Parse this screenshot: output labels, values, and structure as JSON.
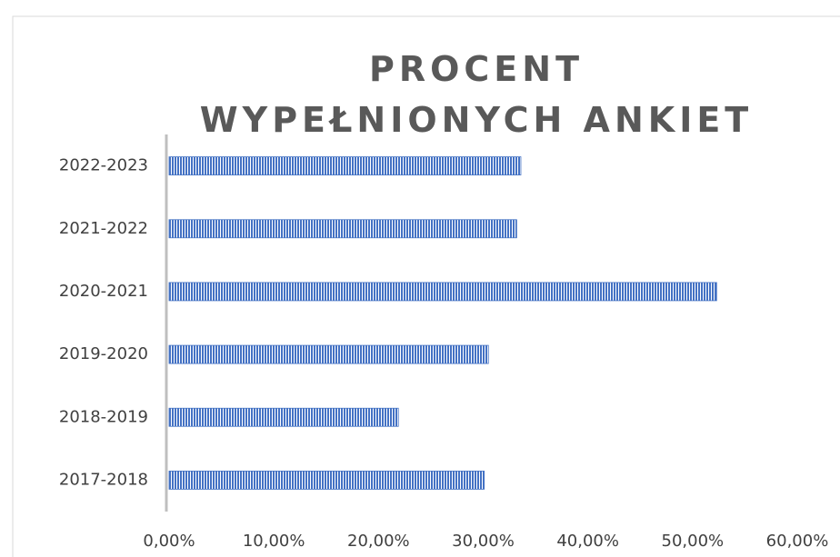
{
  "chart_data": {
    "type": "bar",
    "orientation": "horizontal",
    "title": "PROCENT WYPEŁNIONYCH ANKIET",
    "categories": [
      "2017-2018",
      "2018-2019",
      "2019-2020",
      "2020-2021",
      "2021-2022",
      "2022-2023"
    ],
    "values": [
      30.1,
      21.9,
      30.5,
      52.3,
      33.2,
      33.6
    ],
    "color": "#4472c4",
    "xlim": [
      0,
      60
    ],
    "xticks": [
      {
        "value": 0,
        "label": "0,00%"
      },
      {
        "value": 10,
        "label": "10,00%"
      },
      {
        "value": 20,
        "label": "20,00%"
      },
      {
        "value": 30,
        "label": "30,00%"
      },
      {
        "value": 40,
        "label": "40,00%"
      },
      {
        "value": 50,
        "label": "50,00%"
      },
      {
        "value": 60,
        "label": "60,00%"
      }
    ],
    "grid": false
  }
}
